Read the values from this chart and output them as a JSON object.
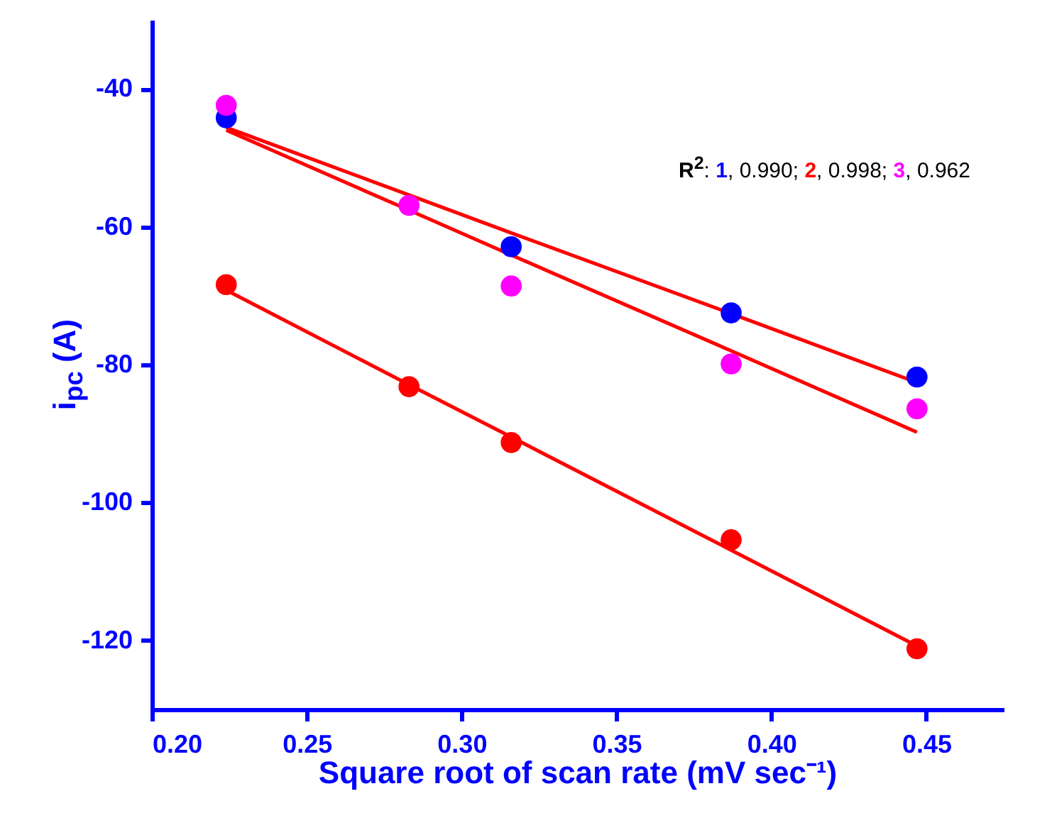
{
  "chart_data": {
    "type": "scatter",
    "xlabel": "Square root of scan rate (mV sec⁻¹)",
    "ylabel": "i$_{pc}$ (A)",
    "x": [
      0.224,
      0.283,
      0.316,
      0.387,
      0.447
    ],
    "xlim": [
      0.2,
      0.475
    ],
    "xticks": [
      {
        "value": 0.2,
        "label": "0.20"
      },
      {
        "value": 0.25,
        "label": "0.25"
      },
      {
        "value": 0.3,
        "label": "0.30"
      },
      {
        "value": 0.35,
        "label": "0.35"
      },
      {
        "value": 0.4,
        "label": "0.40"
      },
      {
        "value": 0.45,
        "label": "0.45"
      }
    ],
    "ylim": [
      -130,
      -30
    ],
    "yticks": [
      -40,
      -60,
      -80,
      -100,
      -120
    ],
    "marker": "circle",
    "series": [
      {
        "type": "line",
        "marker": "none",
        "color": "#ff0000",
        "values": [
          -45.6,
          -55.4,
          -60.9,
          -72.6,
          -82.6
        ]
      },
      {
        "type": "line",
        "marker": "none",
        "color": "#ff0000",
        "values": [
          -69.2,
          -82.9,
          -90.5,
          -106.9,
          -120.8
        ]
      },
      {
        "type": "line",
        "marker": "none",
        "color": "#ff0000",
        "values": [
          -46.0,
          -57.6,
          -64.1,
          -78.0,
          -89.8
        ]
      },
      {
        "color": "#0000ff",
        "values": [
          -44.2,
          null,
          -62.9,
          -72.5,
          -81.8
        ]
      },
      {
        "color": "#ff0000",
        "values": [
          -68.4,
          -83.2,
          -91.3,
          -105.4,
          -121.2
        ]
      },
      {
        "color": "#ff00ff",
        "values": [
          -42.4,
          -56.9,
          -68.6,
          -79.9,
          -86.4
        ]
      }
    ],
    "annotations": [
      "R$^{2}$: 1, 0.990; 2, 0.998; 3, 0.962"
    ]
  }
}
